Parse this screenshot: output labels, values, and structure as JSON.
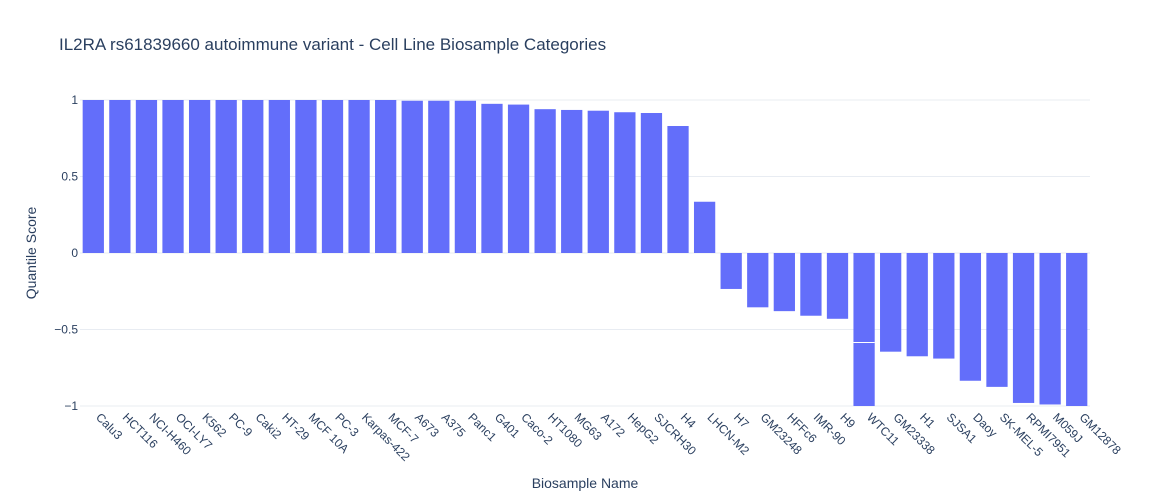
{
  "chart_data": {
    "type": "bar",
    "title": "IL2RA rs61839660 autoimmune variant - Cell Line Biosample Categories",
    "xlabel": "Biosample Name",
    "ylabel": "Quantile Score",
    "ylim": [
      -1,
      1
    ],
    "yticks": [
      1,
      0.5,
      0,
      -0.5,
      -1
    ],
    "ytick_labels": [
      "1",
      "0.5",
      "0",
      "−0.5",
      "−1"
    ],
    "grid": true,
    "bar_color": "#636efa",
    "categories": [
      "Calu3",
      "HCT116",
      "NCI-H460",
      "OCI-LY7",
      "K562",
      "PC-9",
      "Caki2",
      "HT-29",
      "MCF 10A",
      "PC-3",
      "Karpas-422",
      "MCF-7",
      "A673",
      "A375",
      "Panc1",
      "G401",
      "Caco-2",
      "HT1080",
      "MG63",
      "A172",
      "HepG2",
      "SJCRH30",
      "H4",
      "LHCN-M2",
      "H7",
      "GM23248",
      "HFFc6",
      "IMR-90",
      "H9",
      "WTC11",
      "GM23338",
      "H1",
      "SJSA1",
      "Daoy",
      "SK-MEL-5",
      "RPMI7951",
      "M059J",
      "GM12878"
    ],
    "values": [
      1.0,
      1.0,
      1.0,
      1.0,
      1.0,
      1.0,
      1.0,
      1.0,
      1.0,
      1.0,
      1.0,
      1.0,
      0.995,
      0.995,
      0.995,
      0.975,
      0.97,
      0.94,
      0.935,
      0.93,
      0.92,
      0.915,
      0.83,
      0.335,
      -0.235,
      -0.355,
      -0.38,
      -0.41,
      -0.43,
      -1.0,
      -0.645,
      -0.675,
      -0.69,
      -0.835,
      -0.875,
      -0.98,
      -0.99,
      -1.0
    ],
    "segment_breaks": [
      {
        "category": "WTC11",
        "value": -0.585
      }
    ]
  }
}
